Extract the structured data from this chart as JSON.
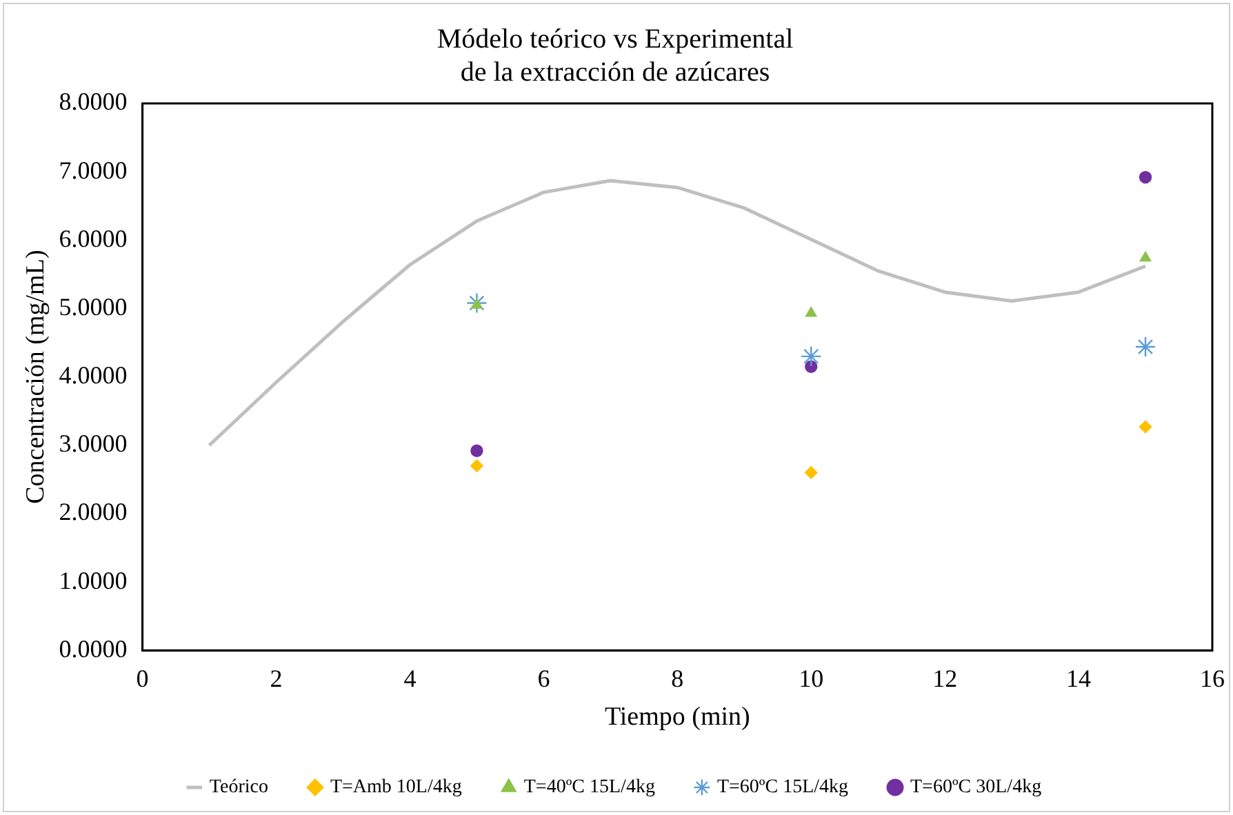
{
  "chart_data": {
    "type": "scatter",
    "title": [
      "Módelo teórico vs Experimental",
      "de la extracción de azúcares"
    ],
    "xlabel": "Tiempo (min)",
    "ylabel": "Concentración (mg/mL)",
    "xlim": [
      0,
      16
    ],
    "xticks": [
      0,
      2,
      4,
      6,
      8,
      10,
      12,
      14,
      16
    ],
    "ylim": [
      0,
      8
    ],
    "yticks": [
      {
        "value": 0,
        "label": "0.0000"
      },
      {
        "value": 1,
        "label": "1.0000"
      },
      {
        "value": 2,
        "label": "2.0000"
      },
      {
        "value": 3,
        "label": "3.0000"
      },
      {
        "value": 4,
        "label": "4.0000"
      },
      {
        "value": 5,
        "label": "5.0000"
      },
      {
        "value": 6,
        "label": "6.0000"
      },
      {
        "value": 7,
        "label": "7.0000"
      },
      {
        "value": 8,
        "label": "8.0000"
      }
    ],
    "grid": false,
    "legend": "bottom",
    "series": [
      {
        "name": "Teórico",
        "type": "line",
        "marker": "none",
        "color": "#bfbfbf",
        "x": [
          1,
          2,
          3,
          4,
          5,
          6,
          7,
          8,
          9,
          10,
          11,
          12,
          13,
          14,
          15
        ],
        "values": [
          3.0,
          3.92,
          4.81,
          5.64,
          6.28,
          6.7,
          6.87,
          6.77,
          6.47,
          6.01,
          5.55,
          5.24,
          5.11,
          5.24,
          5.62
        ]
      },
      {
        "name": "T=Amb 10L/4kg",
        "marker": "diamond",
        "color": "#ffc000",
        "x": [
          5,
          10,
          15
        ],
        "values": [
          2.7,
          2.6,
          3.27
        ]
      },
      {
        "name": "T=40ºC 15L/4kg",
        "marker": "triangle",
        "color": "#8bc34a",
        "x": [
          5,
          10,
          15
        ],
        "values": [
          5.05,
          4.93,
          5.74
        ]
      },
      {
        "name": "T=60ºC 15L/4kg",
        "marker": "cross",
        "color": "#5b9bd5",
        "x": [
          5,
          10,
          15
        ],
        "values": [
          5.08,
          4.3,
          4.44
        ]
      },
      {
        "name": "T=60ºC 30L/4kg",
        "marker": "circle",
        "color": "#7030a0",
        "x": [
          5,
          10,
          15
        ],
        "values": [
          2.92,
          4.15,
          6.92
        ]
      }
    ]
  }
}
